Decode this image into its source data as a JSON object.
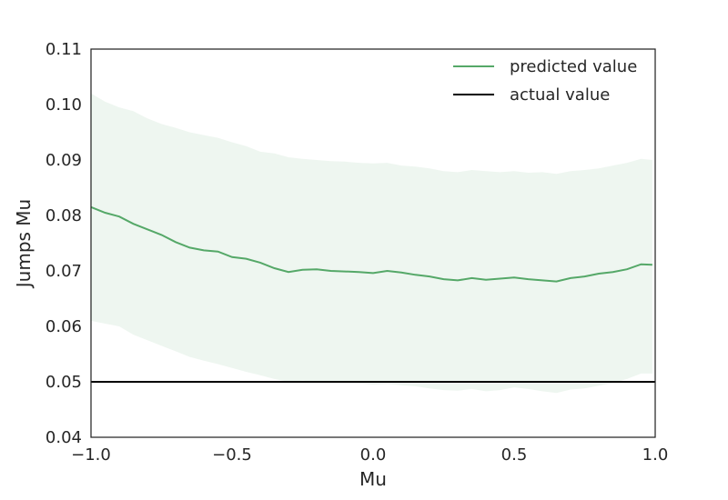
{
  "chart_data": {
    "type": "line",
    "title": "",
    "xlabel": "Mu",
    "ylabel": "Jumps Mu",
    "xlim": [
      -1.0,
      1.0
    ],
    "ylim": [
      0.04,
      0.11
    ],
    "xticks": [
      "−1.0",
      "−0.5",
      "0.0",
      "0.5",
      "1.0"
    ],
    "xtick_values": [
      -1.0,
      -0.5,
      0.0,
      0.5,
      1.0
    ],
    "yticks": [
      "0.04",
      "0.05",
      "0.06",
      "0.07",
      "0.08",
      "0.09",
      "0.10",
      "0.11"
    ],
    "ytick_values": [
      0.04,
      0.05,
      0.06,
      0.07,
      0.08,
      0.09,
      0.1,
      0.11
    ],
    "grid": false,
    "legend_position": "top-right",
    "series": [
      {
        "name": "predicted value",
        "color": "#55a868",
        "x": [
          -1.0,
          -0.95,
          -0.9,
          -0.85,
          -0.8,
          -0.75,
          -0.7,
          -0.65,
          -0.6,
          -0.55,
          -0.5,
          -0.45,
          -0.4,
          -0.35,
          -0.3,
          -0.25,
          -0.2,
          -0.15,
          -0.1,
          -0.05,
          0.0,
          0.05,
          0.1,
          0.15,
          0.2,
          0.25,
          0.3,
          0.35,
          0.4,
          0.45,
          0.5,
          0.55,
          0.6,
          0.65,
          0.7,
          0.75,
          0.8,
          0.85,
          0.9,
          0.95,
          0.99
        ],
        "values": [
          0.0815,
          0.0805,
          0.0798,
          0.0785,
          0.0775,
          0.0765,
          0.0752,
          0.0742,
          0.0737,
          0.0735,
          0.0725,
          0.0722,
          0.0715,
          0.0705,
          0.0698,
          0.0702,
          0.0703,
          0.07,
          0.0699,
          0.0698,
          0.0696,
          0.07,
          0.0697,
          0.0693,
          0.069,
          0.0685,
          0.0683,
          0.0687,
          0.0684,
          0.0686,
          0.0688,
          0.0685,
          0.0683,
          0.0681,
          0.0687,
          0.069,
          0.0695,
          0.0698,
          0.0703,
          0.0712,
          0.0711
        ]
      },
      {
        "name": "actual value",
        "color": "#000000",
        "x": [
          -1.0,
          1.0
        ],
        "values": [
          0.05,
          0.05
        ]
      }
    ],
    "band": {
      "color": "#55a868",
      "opacity": 0.1,
      "x": [
        -1.0,
        -0.95,
        -0.9,
        -0.85,
        -0.8,
        -0.75,
        -0.7,
        -0.65,
        -0.6,
        -0.55,
        -0.5,
        -0.45,
        -0.4,
        -0.35,
        -0.3,
        -0.25,
        -0.2,
        -0.15,
        -0.1,
        -0.05,
        0.0,
        0.05,
        0.1,
        0.15,
        0.2,
        0.25,
        0.3,
        0.35,
        0.4,
        0.45,
        0.5,
        0.55,
        0.6,
        0.65,
        0.7,
        0.75,
        0.8,
        0.85,
        0.9,
        0.95,
        0.99
      ],
      "upper": [
        0.102,
        0.1005,
        0.0995,
        0.0988,
        0.0975,
        0.0965,
        0.0958,
        0.095,
        0.0945,
        0.094,
        0.0932,
        0.0925,
        0.0915,
        0.0912,
        0.0905,
        0.0902,
        0.09,
        0.0898,
        0.0897,
        0.0895,
        0.0894,
        0.0895,
        0.089,
        0.0888,
        0.0885,
        0.088,
        0.0878,
        0.0882,
        0.088,
        0.0878,
        0.088,
        0.0877,
        0.0878,
        0.0875,
        0.088,
        0.0882,
        0.0885,
        0.089,
        0.0895,
        0.0902,
        0.09
      ],
      "lower": [
        0.061,
        0.0605,
        0.06,
        0.0585,
        0.0575,
        0.0565,
        0.0555,
        0.0545,
        0.0538,
        0.0532,
        0.0525,
        0.0518,
        0.0512,
        0.0505,
        0.05,
        0.0502,
        0.05,
        0.0498,
        0.0498,
        0.0497,
        0.0495,
        0.0496,
        0.0494,
        0.0492,
        0.0488,
        0.0485,
        0.0484,
        0.0487,
        0.0483,
        0.0485,
        0.049,
        0.0487,
        0.0483,
        0.048,
        0.0486,
        0.0488,
        0.0493,
        0.0498,
        0.0505,
        0.0515,
        0.0515
      ]
    }
  }
}
